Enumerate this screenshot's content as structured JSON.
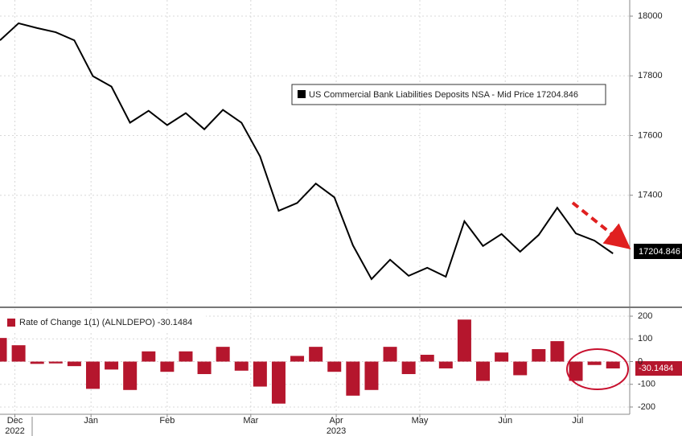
{
  "chart_data": [
    {
      "type": "line",
      "series": [
        {
          "name": "US Commercial Bank Liabilities Deposits NSA - Mid Price 17204.846",
          "color": "#000000",
          "values": [
            17919,
            17976,
            17960,
            17946,
            17919,
            17799,
            17764,
            17643,
            17683,
            17635,
            17675,
            17621,
            17686,
            17643,
            17530,
            17348,
            17374,
            17439,
            17393,
            17232,
            17119,
            17184,
            17130,
            17157,
            17127,
            17313,
            17230,
            17270,
            17211,
            17267,
            17358,
            17272,
            17248,
            17204.846
          ]
        }
      ],
      "x": [
        0,
        1,
        2,
        3,
        4,
        5,
        6,
        7,
        8,
        9,
        10,
        11,
        12,
        13,
        14,
        15,
        16,
        17,
        18,
        19,
        20,
        21,
        22,
        23,
        24,
        25,
        26,
        27,
        28,
        29,
        30,
        31,
        32,
        33
      ],
      "xlim": [
        0,
        33.9
      ],
      "ylim": [
        17030,
        18054
      ],
      "yticks": [
        17400,
        17600,
        17800,
        18000
      ],
      "grid": true
    },
    {
      "type": "bar",
      "series": [
        {
          "name": "Rate of Change 1(1) (ALNLDEPO) -30.1484",
          "color": "#b5162d",
          "values": [
            104,
            72,
            -10,
            -8,
            -20,
            -120,
            -35,
            -125,
            45,
            -45,
            45,
            -55,
            65,
            -40,
            -110,
            -185,
            25,
            65,
            -45,
            -150,
            -125,
            65,
            -55,
            30,
            -30,
            185,
            -85,
            40,
            -60,
            55,
            90,
            -85,
            -15,
            -30.1484
          ]
        }
      ],
      "x": [
        0,
        1,
        2,
        3,
        4,
        5,
        6,
        7,
        8,
        9,
        10,
        11,
        12,
        13,
        14,
        15,
        16,
        17,
        18,
        19,
        20,
        21,
        22,
        23,
        24,
        25,
        26,
        27,
        28,
        29,
        30,
        31,
        32,
        33
      ],
      "xlim": [
        0,
        33.9
      ],
      "xticks": [
        {
          "value": 0.8,
          "label": "Dec"
        },
        {
          "value": 4.9,
          "label": "Jan"
        },
        {
          "value": 9,
          "label": "Feb"
        },
        {
          "value": 13.5,
          "label": "Mar"
        },
        {
          "value": 18.1,
          "label": "Apr"
        },
        {
          "value": 22.6,
          "label": "May"
        },
        {
          "value": 27.2,
          "label": "Jun"
        },
        {
          "value": 31.1,
          "label": "Jul"
        }
      ],
      "xticks_year": [
        {
          "value": 0.8,
          "label": "2022"
        },
        {
          "value": 18.1,
          "label": "2023"
        }
      ],
      "ylim": [
        -232,
        232
      ],
      "yticks": [
        -200,
        -100,
        0,
        100,
        200
      ],
      "grid": true
    }
  ]
}
